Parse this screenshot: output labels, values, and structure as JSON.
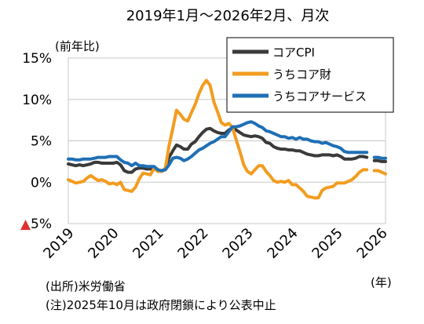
{
  "chart_data": {
    "type": "line",
    "title": "2019年1月～2026年2月、月次",
    "ylabel": "(前年比)",
    "xlabel_unit": "(年)",
    "ylim": [
      -5,
      15
    ],
    "yticks": [
      {
        "value": 15,
        "label": "15%",
        "marker": ""
      },
      {
        "value": 10,
        "label": "10%",
        "marker": ""
      },
      {
        "value": 5,
        "label": "5%",
        "marker": ""
      },
      {
        "value": 0,
        "label": "0%",
        "marker": ""
      },
      {
        "value": -5,
        "label": "5%",
        "marker": "▲"
      }
    ],
    "xticks": [
      "2019",
      "2020",
      "2021",
      "2022",
      "2023",
      "2024",
      "2025",
      "2026"
    ],
    "x_range": [
      "2019-01",
      "2026-02"
    ],
    "grid": true,
    "legend_position": "top-right",
    "notes": [
      "(出所)米労働省",
      "(注)2025年10月は政府閉鎖により公表中止"
    ],
    "series": [
      {
        "name": "コアCPI",
        "color": "#3a3a3a",
        "values": [
          [
            "2019-01",
            2.2
          ],
          [
            "2019-02",
            2.1
          ],
          [
            "2019-03",
            2.0
          ],
          [
            "2019-04",
            2.1
          ],
          [
            "2019-05",
            2.0
          ],
          [
            "2019-06",
            2.1
          ],
          [
            "2019-07",
            2.2
          ],
          [
            "2019-08",
            2.4
          ],
          [
            "2019-09",
            2.4
          ],
          [
            "2019-10",
            2.3
          ],
          [
            "2019-11",
            2.3
          ],
          [
            "2019-12",
            2.3
          ],
          [
            "2020-01",
            2.3
          ],
          [
            "2020-02",
            2.4
          ],
          [
            "2020-03",
            2.1
          ],
          [
            "2020-04",
            1.4
          ],
          [
            "2020-05",
            1.2
          ],
          [
            "2020-06",
            1.2
          ],
          [
            "2020-07",
            1.6
          ],
          [
            "2020-08",
            1.7
          ],
          [
            "2020-09",
            1.7
          ],
          [
            "2020-10",
            1.6
          ],
          [
            "2020-11",
            1.6
          ],
          [
            "2020-12",
            1.6
          ],
          [
            "2021-01",
            1.4
          ],
          [
            "2021-02",
            1.3
          ],
          [
            "2021-03",
            1.6
          ],
          [
            "2021-04",
            3.0
          ],
          [
            "2021-05",
            3.8
          ],
          [
            "2021-06",
            4.5
          ],
          [
            "2021-07",
            4.3
          ],
          [
            "2021-08",
            4.0
          ],
          [
            "2021-09",
            4.0
          ],
          [
            "2021-10",
            4.6
          ],
          [
            "2021-11",
            4.9
          ],
          [
            "2021-12",
            5.5
          ],
          [
            "2022-01",
            6.0
          ],
          [
            "2022-02",
            6.4
          ],
          [
            "2022-03",
            6.5
          ],
          [
            "2022-04",
            6.2
          ],
          [
            "2022-05",
            6.0
          ],
          [
            "2022-06",
            5.9
          ],
          [
            "2022-07",
            5.9
          ],
          [
            "2022-08",
            6.3
          ],
          [
            "2022-09",
            6.6
          ],
          [
            "2022-10",
            6.3
          ],
          [
            "2022-11",
            6.0
          ],
          [
            "2022-12",
            5.7
          ],
          [
            "2023-01",
            5.6
          ],
          [
            "2023-02",
            5.5
          ],
          [
            "2023-03",
            5.6
          ],
          [
            "2023-04",
            5.5
          ],
          [
            "2023-05",
            5.3
          ],
          [
            "2023-06",
            4.8
          ],
          [
            "2023-07",
            4.7
          ],
          [
            "2023-08",
            4.3
          ],
          [
            "2023-09",
            4.1
          ],
          [
            "2023-10",
            4.0
          ],
          [
            "2023-11",
            4.0
          ],
          [
            "2023-12",
            3.9
          ],
          [
            "2024-01",
            3.9
          ],
          [
            "2024-02",
            3.8
          ],
          [
            "2024-03",
            3.8
          ],
          [
            "2024-04",
            3.6
          ],
          [
            "2024-05",
            3.4
          ],
          [
            "2024-06",
            3.3
          ],
          [
            "2024-07",
            3.2
          ],
          [
            "2024-08",
            3.2
          ],
          [
            "2024-09",
            3.3
          ],
          [
            "2024-10",
            3.3
          ],
          [
            "2024-11",
            3.3
          ],
          [
            "2024-12",
            3.2
          ],
          [
            "2025-01",
            3.3
          ],
          [
            "2025-02",
            3.1
          ],
          [
            "2025-03",
            2.8
          ],
          [
            "2025-04",
            2.8
          ],
          [
            "2025-05",
            2.8
          ],
          [
            "2025-06",
            2.9
          ],
          [
            "2025-07",
            3.1
          ],
          [
            "2025-08",
            3.1
          ],
          [
            "2025-09",
            3.0
          ],
          [
            "2025-10",
            null
          ],
          [
            "2025-11",
            2.6
          ],
          [
            "2025-12",
            2.6
          ],
          [
            "2026-01",
            2.5
          ],
          [
            "2026-02",
            2.5
          ]
        ]
      },
      {
        "name": "うちコア財",
        "color": "#f29c1f",
        "values": [
          [
            "2019-01",
            0.3
          ],
          [
            "2019-02",
            0.1
          ],
          [
            "2019-03",
            -0.1
          ],
          [
            "2019-04",
            0.0
          ],
          [
            "2019-05",
            0.1
          ],
          [
            "2019-06",
            0.5
          ],
          [
            "2019-07",
            0.8
          ],
          [
            "2019-08",
            0.5
          ],
          [
            "2019-09",
            0.2
          ],
          [
            "2019-10",
            0.3
          ],
          [
            "2019-11",
            0.1
          ],
          [
            "2019-12",
            -0.2
          ],
          [
            "2020-01",
            -0.1
          ],
          [
            "2020-02",
            -0.3
          ],
          [
            "2020-03",
            0.0
          ],
          [
            "2020-04",
            -0.9
          ],
          [
            "2020-05",
            -1.0
          ],
          [
            "2020-06",
            -1.1
          ],
          [
            "2020-07",
            -0.6
          ],
          [
            "2020-08",
            0.4
          ],
          [
            "2020-09",
            1.1
          ],
          [
            "2020-10",
            1.0
          ],
          [
            "2020-11",
            0.9
          ],
          [
            "2020-12",
            1.7
          ],
          [
            "2021-01",
            1.3
          ],
          [
            "2021-02",
            1.3
          ],
          [
            "2021-03",
            1.7
          ],
          [
            "2021-04",
            4.4
          ],
          [
            "2021-05",
            6.5
          ],
          [
            "2021-06",
            8.7
          ],
          [
            "2021-07",
            8.2
          ],
          [
            "2021-08",
            7.6
          ],
          [
            "2021-09",
            7.4
          ],
          [
            "2021-10",
            8.4
          ],
          [
            "2021-11",
            9.4
          ],
          [
            "2021-12",
            10.7
          ],
          [
            "2022-01",
            11.7
          ],
          [
            "2022-02",
            12.3
          ],
          [
            "2022-03",
            11.7
          ],
          [
            "2022-04",
            9.7
          ],
          [
            "2022-05",
            8.5
          ],
          [
            "2022-06",
            7.2
          ],
          [
            "2022-07",
            6.9
          ],
          [
            "2022-08",
            7.1
          ],
          [
            "2022-09",
            6.6
          ],
          [
            "2022-10",
            5.1
          ],
          [
            "2022-11",
            3.7
          ],
          [
            "2022-12",
            2.1
          ],
          [
            "2023-01",
            1.3
          ],
          [
            "2023-02",
            1.0
          ],
          [
            "2023-03",
            1.5
          ],
          [
            "2023-04",
            2.0
          ],
          [
            "2023-05",
            2.0
          ],
          [
            "2023-06",
            1.3
          ],
          [
            "2023-07",
            0.8
          ],
          [
            "2023-08",
            0.2
          ],
          [
            "2023-09",
            0.0
          ],
          [
            "2023-10",
            0.1
          ],
          [
            "2023-11",
            0.0
          ],
          [
            "2023-12",
            0.2
          ],
          [
            "2024-01",
            -0.3
          ],
          [
            "2024-02",
            -0.3
          ],
          [
            "2024-03",
            -0.7
          ],
          [
            "2024-04",
            -1.1
          ],
          [
            "2024-05",
            -1.7
          ],
          [
            "2024-06",
            -1.8
          ],
          [
            "2024-07",
            -1.9
          ],
          [
            "2024-08",
            -1.9
          ],
          [
            "2024-09",
            -1.0
          ],
          [
            "2024-10",
            -0.7
          ],
          [
            "2024-11",
            -0.6
          ],
          [
            "2024-12",
            -0.5
          ],
          [
            "2025-01",
            -0.1
          ],
          [
            "2025-02",
            -0.1
          ],
          [
            "2025-03",
            -0.1
          ],
          [
            "2025-04",
            0.1
          ],
          [
            "2025-05",
            0.3
          ],
          [
            "2025-06",
            0.7
          ],
          [
            "2025-07",
            1.2
          ],
          [
            "2025-08",
            1.5
          ],
          [
            "2025-09",
            1.5
          ],
          [
            "2025-10",
            null
          ],
          [
            "2025-11",
            1.4
          ],
          [
            "2025-12",
            1.4
          ],
          [
            "2026-01",
            1.2
          ],
          [
            "2026-02",
            1.0
          ]
        ]
      },
      {
        "name": "うちコアサービス",
        "color": "#1f6fb5",
        "values": [
          [
            "2019-01",
            2.8
          ],
          [
            "2019-02",
            2.8
          ],
          [
            "2019-03",
            2.7
          ],
          [
            "2019-04",
            2.7
          ],
          [
            "2019-05",
            2.8
          ],
          [
            "2019-06",
            2.8
          ],
          [
            "2019-07",
            2.8
          ],
          [
            "2019-08",
            2.9
          ],
          [
            "2019-09",
            3.0
          ],
          [
            "2019-10",
            3.0
          ],
          [
            "2019-11",
            3.0
          ],
          [
            "2019-12",
            3.1
          ],
          [
            "2020-01",
            3.1
          ],
          [
            "2020-02",
            3.1
          ],
          [
            "2020-03",
            2.7
          ],
          [
            "2020-04",
            2.4
          ],
          [
            "2020-05",
            2.3
          ],
          [
            "2020-06",
            2.0
          ],
          [
            "2020-07",
            2.3
          ],
          [
            "2020-08",
            2.0
          ],
          [
            "2020-09",
            2.0
          ],
          [
            "2020-10",
            1.9
          ],
          [
            "2020-11",
            1.9
          ],
          [
            "2020-12",
            1.9
          ],
          [
            "2021-01",
            1.5
          ],
          [
            "2021-02",
            1.4
          ],
          [
            "2021-03",
            1.5
          ],
          [
            "2021-04",
            2.1
          ],
          [
            "2021-05",
            2.9
          ],
          [
            "2021-06",
            3.0
          ],
          [
            "2021-07",
            2.9
          ],
          [
            "2021-08",
            2.6
          ],
          [
            "2021-09",
            2.8
          ],
          [
            "2021-10",
            3.1
          ],
          [
            "2021-11",
            3.5
          ],
          [
            "2021-12",
            3.9
          ],
          [
            "2022-01",
            4.1
          ],
          [
            "2022-02",
            4.4
          ],
          [
            "2022-03",
            4.7
          ],
          [
            "2022-04",
            4.9
          ],
          [
            "2022-05",
            5.2
          ],
          [
            "2022-06",
            5.5
          ],
          [
            "2022-07",
            5.5
          ],
          [
            "2022-08",
            6.1
          ],
          [
            "2022-09",
            6.7
          ],
          [
            "2022-10",
            6.7
          ],
          [
            "2022-11",
            6.8
          ],
          [
            "2022-12",
            7.0
          ],
          [
            "2023-01",
            7.2
          ],
          [
            "2023-02",
            7.3
          ],
          [
            "2023-03",
            7.1
          ],
          [
            "2023-04",
            6.8
          ],
          [
            "2023-05",
            6.6
          ],
          [
            "2023-06",
            6.2
          ],
          [
            "2023-07",
            6.1
          ],
          [
            "2023-08",
            5.9
          ],
          [
            "2023-09",
            5.7
          ],
          [
            "2023-10",
            5.5
          ],
          [
            "2023-11",
            5.5
          ],
          [
            "2023-12",
            5.3
          ],
          [
            "2024-01",
            5.4
          ],
          [
            "2024-02",
            5.2
          ],
          [
            "2024-03",
            5.4
          ],
          [
            "2024-04",
            5.2
          ],
          [
            "2024-05",
            5.2
          ],
          [
            "2024-06",
            5.0
          ],
          [
            "2024-07",
            4.9
          ],
          [
            "2024-08",
            4.9
          ],
          [
            "2024-09",
            4.7
          ],
          [
            "2024-10",
            4.8
          ],
          [
            "2024-11",
            4.6
          ],
          [
            "2024-12",
            4.4
          ],
          [
            "2025-01",
            4.3
          ],
          [
            "2025-02",
            4.1
          ],
          [
            "2025-03",
            3.7
          ],
          [
            "2025-04",
            3.6
          ],
          [
            "2025-05",
            3.6
          ],
          [
            "2025-06",
            3.6
          ],
          [
            "2025-07",
            3.6
          ],
          [
            "2025-08",
            3.6
          ],
          [
            "2025-09",
            3.6
          ],
          [
            "2025-10",
            null
          ],
          [
            "2025-11",
            3.0
          ],
          [
            "2025-12",
            3.0
          ],
          [
            "2026-01",
            2.9
          ],
          [
            "2026-02",
            2.9
          ]
        ]
      }
    ]
  }
}
